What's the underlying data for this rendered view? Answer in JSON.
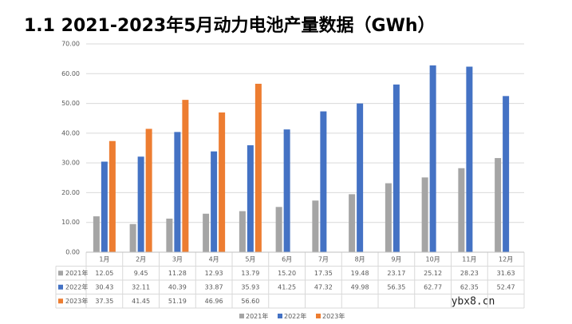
{
  "chart_data": {
    "type": "bar",
    "title": "1.1 2021-2023年5月动力电池产量数据（GWh）",
    "categories": [
      "1月",
      "2月",
      "3月",
      "4月",
      "5月",
      "6月",
      "7月",
      "8月",
      "9月",
      "10月",
      "11月",
      "12月"
    ],
    "series": [
      {
        "name": "2021年",
        "color": "#a5a5a5",
        "values": [
          12.05,
          9.45,
          11.28,
          12.93,
          13.79,
          15.2,
          17.35,
          19.48,
          23.17,
          25.12,
          28.23,
          31.63
        ],
        "value_labels": [
          "12.05",
          "9.45",
          "11.28",
          "12.93",
          "13.79",
          "15.20",
          "17.35",
          "19.48",
          "23.17",
          "25.12",
          "28.23",
          "31.63"
        ]
      },
      {
        "name": "2022年",
        "color": "#4472c4",
        "values": [
          30.43,
          32.11,
          40.39,
          33.87,
          35.93,
          41.25,
          47.32,
          49.98,
          56.35,
          62.77,
          62.35,
          52.47
        ],
        "value_labels": [
          "30.43",
          "32.11",
          "40.39",
          "33.87",
          "35.93",
          "41.25",
          "47.32",
          "49.98",
          "56.35",
          "62.77",
          "62.35",
          "52.47"
        ]
      },
      {
        "name": "2023年",
        "color": "#ed7d31",
        "values": [
          37.35,
          41.45,
          51.19,
          46.96,
          56.6,
          null,
          null,
          null,
          null,
          null,
          null,
          null
        ],
        "value_labels": [
          "37.35",
          "41.45",
          "51.19",
          "46.96",
          "56.60",
          null,
          null,
          null,
          null,
          null,
          null,
          null
        ]
      }
    ],
    "ylim": [
      0,
      70
    ],
    "yticks": [
      {
        "value": 0,
        "label": "0.00"
      },
      {
        "value": 10,
        "label": "10.00"
      },
      {
        "value": 20,
        "label": "20.00"
      },
      {
        "value": 30,
        "label": "30.00"
      },
      {
        "value": 40,
        "label": "40.00"
      },
      {
        "value": 50,
        "label": "50.00"
      },
      {
        "value": 60,
        "label": "60.00"
      },
      {
        "value": 70,
        "label": "70.00"
      }
    ],
    "grid": true,
    "legend": "bottom",
    "watermark": "ybx8.cn"
  }
}
